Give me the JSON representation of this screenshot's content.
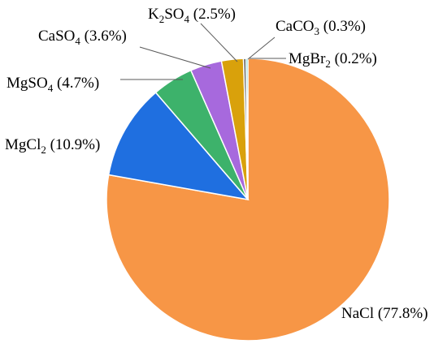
{
  "chart_data": {
    "type": "pie",
    "start_angle_deg": 0,
    "direction": "clockwise",
    "slices": [
      {
        "formula": "NaCl",
        "sub": "",
        "tail": "",
        "value": 77.8,
        "label": "NaCl (77.8%)",
        "color": "#F79646"
      },
      {
        "formula": "MgCl",
        "sub": "2",
        "tail": "",
        "value": 10.9,
        "label": "MgCl2 (10.9%)",
        "color": "#1F6FE0"
      },
      {
        "formula": "MgSO",
        "sub": "4",
        "tail": "",
        "value": 4.7,
        "label": "MgSO4 (4.7%)",
        "color": "#3DB26B"
      },
      {
        "formula": "CaSO",
        "sub": "4",
        "tail": "",
        "value": 3.6,
        "label": "CaSO4 (3.6%)",
        "color": "#A769DD"
      },
      {
        "formula": "K",
        "sub": "2",
        "tail": "SO4",
        "value": 2.5,
        "label": "K2SO4 (2.5%)",
        "color": "#D9A10B"
      },
      {
        "formula": "CaCO",
        "sub": "3",
        "tail": "",
        "value": 0.3,
        "label": "CaCO3 (0.3%)",
        "color": "#5E5E5E"
      },
      {
        "formula": "MgBr",
        "sub": "2",
        "tail": "",
        "value": 0.2,
        "label": "MgBr2 (0.2%)",
        "color": "#2BB7B3"
      }
    ],
    "legend": "none",
    "title": ""
  }
}
